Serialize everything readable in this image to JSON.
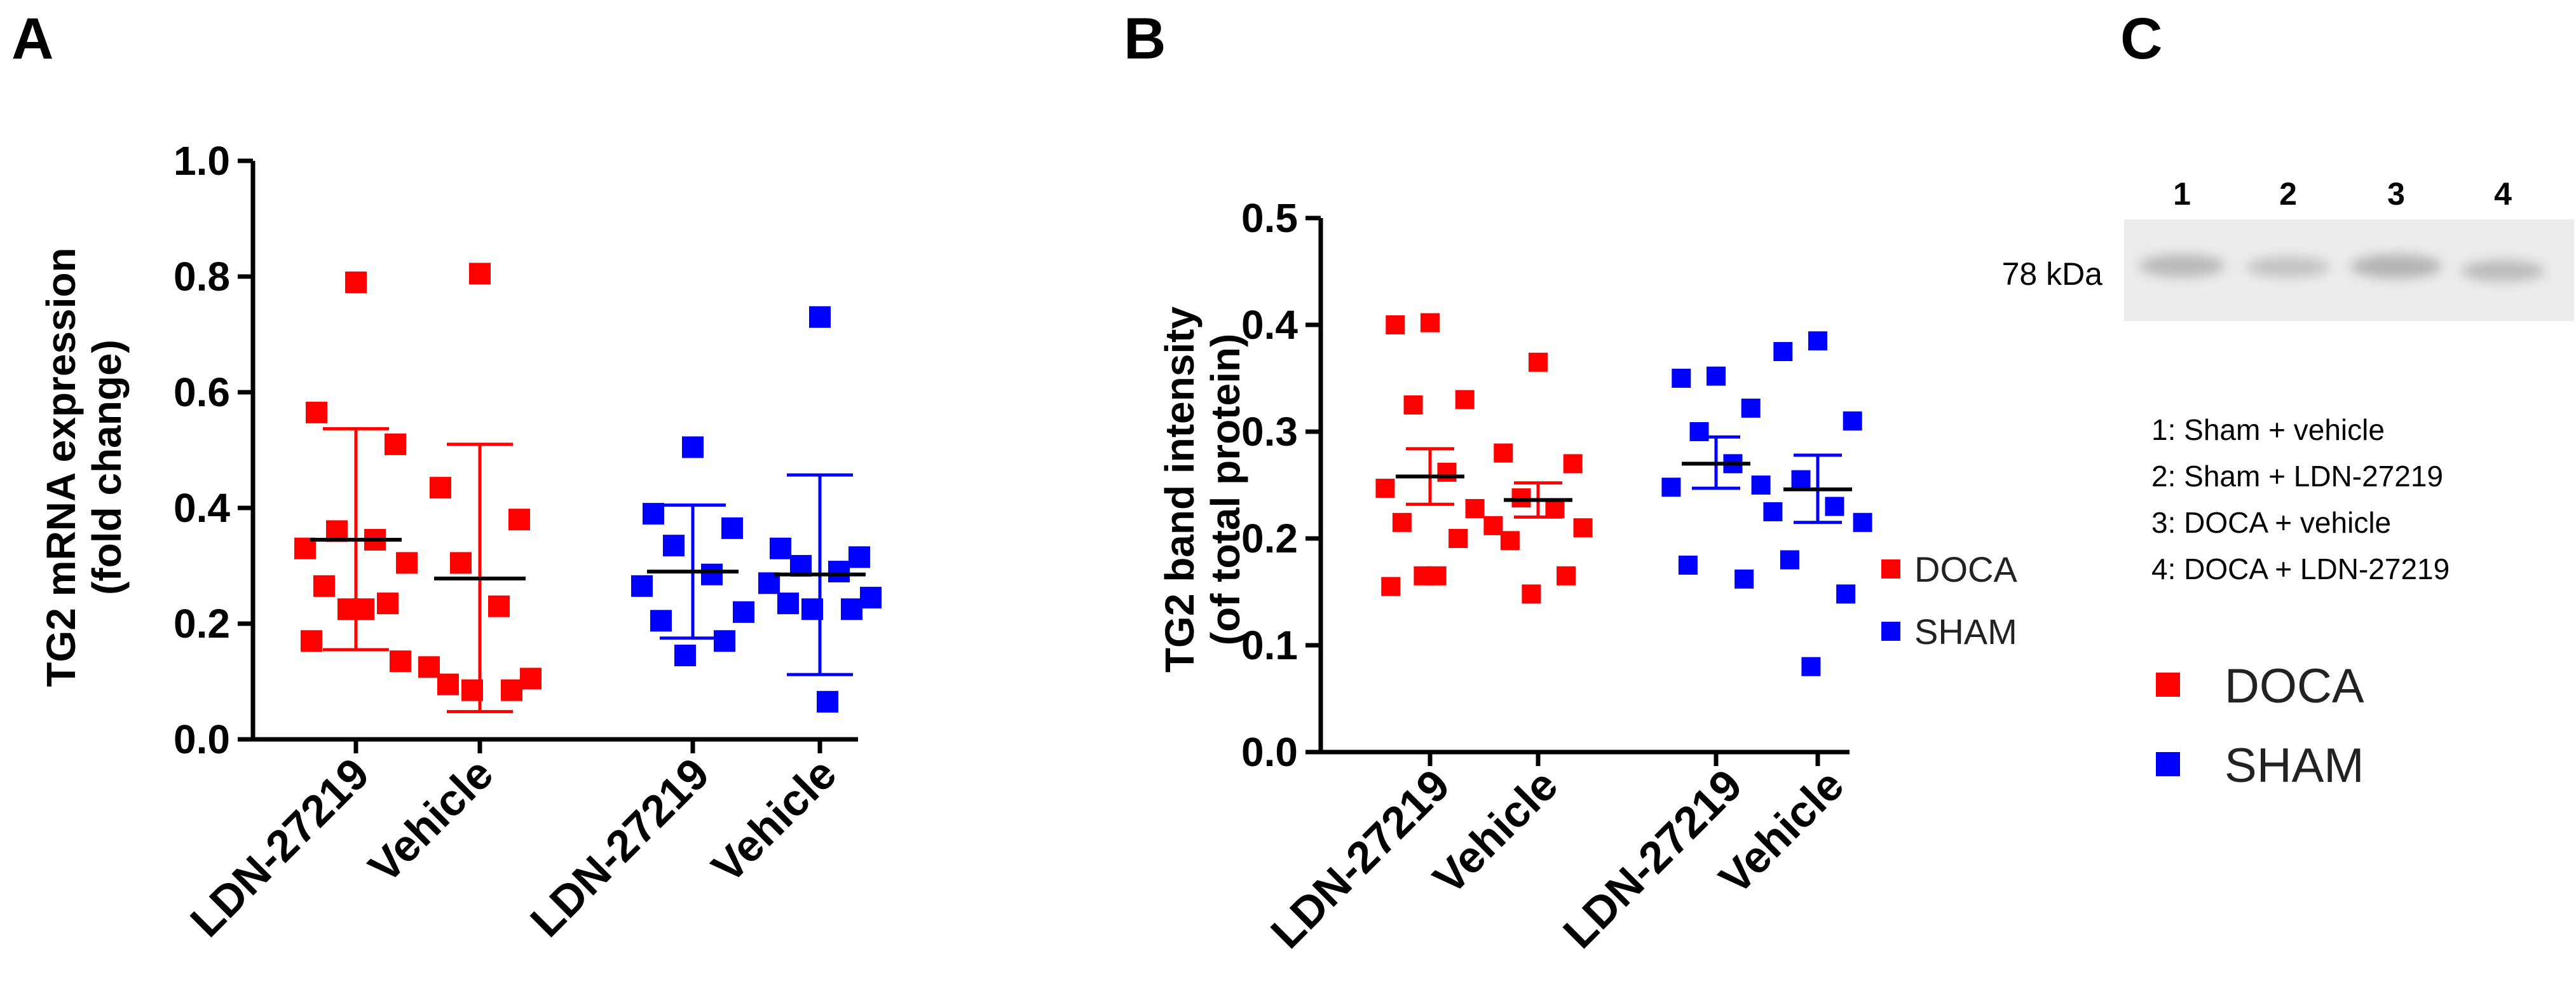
{
  "chart_data": [
    {
      "type": "scatter",
      "panel": "A",
      "ylabel_line1": "TG2 mRNA expression",
      "ylabel_line2": "(fold change)",
      "ylim": [
        0,
        1.0
      ],
      "yticks": [
        0.0,
        0.2,
        0.4,
        0.6,
        0.8,
        1.0
      ],
      "ytick_labels": [
        "0.0",
        "0.2",
        "0.4",
        "0.6",
        "0.8",
        "1.0"
      ],
      "categories": [
        "LDN-27219",
        "Vehicle",
        "LDN-27219",
        "Vehicle"
      ],
      "groups": [
        {
          "series": "DOCA",
          "color": "#ff0000",
          "mean": 0.345,
          "err_low": 0.155,
          "err_high": 0.537,
          "values": [
            0.79,
            0.565,
            0.51,
            0.36,
            0.345,
            0.33,
            0.305,
            0.265,
            0.235,
            0.225,
            0.225,
            0.17,
            0.135
          ]
        },
        {
          "series": "DOCA",
          "color": "#ff0000",
          "mean": 0.278,
          "err_low": 0.048,
          "err_high": 0.51,
          "values": [
            0.805,
            0.435,
            0.38,
            0.305,
            0.23,
            0.125,
            0.105,
            0.095,
            0.085,
            0.085
          ]
        },
        {
          "series": "SHAM",
          "color": "#0000ff",
          "mean": 0.29,
          "err_low": 0.175,
          "err_high": 0.405,
          "values": [
            0.505,
            0.39,
            0.365,
            0.335,
            0.285,
            0.265,
            0.22,
            0.205,
            0.17,
            0.145
          ]
        },
        {
          "series": "SHAM",
          "color": "#0000ff",
          "mean": 0.285,
          "err_low": 0.112,
          "err_high": 0.457,
          "values": [
            0.73,
            0.33,
            0.315,
            0.3,
            0.29,
            0.27,
            0.245,
            0.235,
            0.225,
            0.225,
            0.065
          ]
        }
      ]
    },
    {
      "type": "scatter",
      "panel": "B",
      "ylabel_line1": "TG2 band intensity",
      "ylabel_line2": "(of total protein)",
      "ylim": [
        0,
        0.5
      ],
      "yticks": [
        0.0,
        0.1,
        0.2,
        0.3,
        0.4,
        0.5
      ],
      "ytick_labels": [
        "0.0",
        "0.1",
        "0.2",
        "0.3",
        "0.4",
        "0.5"
      ],
      "categories": [
        "LDN-27219",
        "Vehicle",
        "LDN-27219",
        "Vehicle"
      ],
      "legend": [
        {
          "label": "DOCA",
          "color": "#ff0000"
        },
        {
          "label": "SHAM",
          "color": "#0000ff"
        }
      ],
      "groups": [
        {
          "series": "DOCA",
          "color": "#ff0000",
          "mean": 0.258,
          "err_low": 0.232,
          "err_high": 0.284,
          "values": [
            0.402,
            0.4,
            0.33,
            0.325,
            0.262,
            0.247,
            0.228,
            0.215,
            0.2,
            0.165,
            0.165,
            0.155
          ]
        },
        {
          "series": "DOCA",
          "color": "#ff0000",
          "mean": 0.236,
          "err_low": 0.22,
          "err_high": 0.252,
          "values": [
            0.365,
            0.28,
            0.27,
            0.238,
            0.228,
            0.212,
            0.21,
            0.198,
            0.165,
            0.148
          ]
        },
        {
          "series": "SHAM",
          "color": "#0000ff",
          "mean": 0.27,
          "err_low": 0.247,
          "err_high": 0.295,
          "values": [
            0.352,
            0.35,
            0.322,
            0.3,
            0.27,
            0.248,
            0.25,
            0.175,
            0.162
          ]
        },
        {
          "series": "SHAM",
          "color": "#0000ff",
          "mean": 0.246,
          "err_low": 0.215,
          "err_high": 0.278,
          "values": [
            0.385,
            0.375,
            0.31,
            0.255,
            0.23,
            0.225,
            0.215,
            0.18,
            0.148,
            0.08
          ]
        }
      ]
    }
  ],
  "panel_c": {
    "letter": "C",
    "lanes": [
      "1",
      "2",
      "3",
      "4"
    ],
    "marker": "78 kDa",
    "key": [
      "1: Sham + vehicle",
      "2: Sham + LDN-27219",
      "3: DOCA + vehicle",
      "4: DOCA + LDN-27219"
    ],
    "legend": [
      {
        "label": "DOCA",
        "color": "#ff0000"
      },
      {
        "label": "SHAM",
        "color": "#0000ff"
      }
    ]
  }
}
